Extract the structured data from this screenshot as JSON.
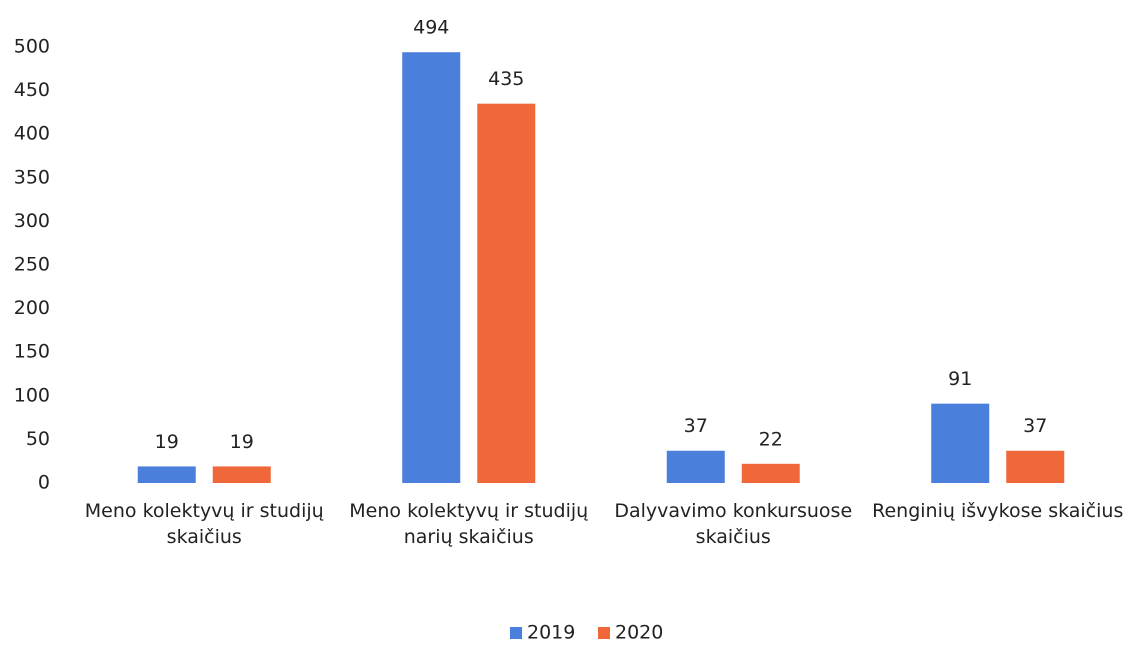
{
  "chart_data": {
    "type": "bar",
    "categories": [
      "Meno kolektyvų ir studijų skaičius",
      "Meno kolektyvų ir studijų narių skaičius",
      "Dalyvavimo konkursuose skaičius",
      "Renginių išvykose skaičius"
    ],
    "series": [
      {
        "name": "2019",
        "color": "#4a7fdc",
        "values": [
          19,
          494,
          37,
          91
        ]
      },
      {
        "name": "2020",
        "color": "#f0683a",
        "values": [
          19,
          435,
          22,
          37
        ]
      }
    ],
    "ylim": [
      0,
      500
    ],
    "yticks": [
      0,
      50,
      100,
      150,
      200,
      250,
      300,
      350,
      400,
      450,
      500
    ],
    "grid": false,
    "legend": "bottom"
  }
}
